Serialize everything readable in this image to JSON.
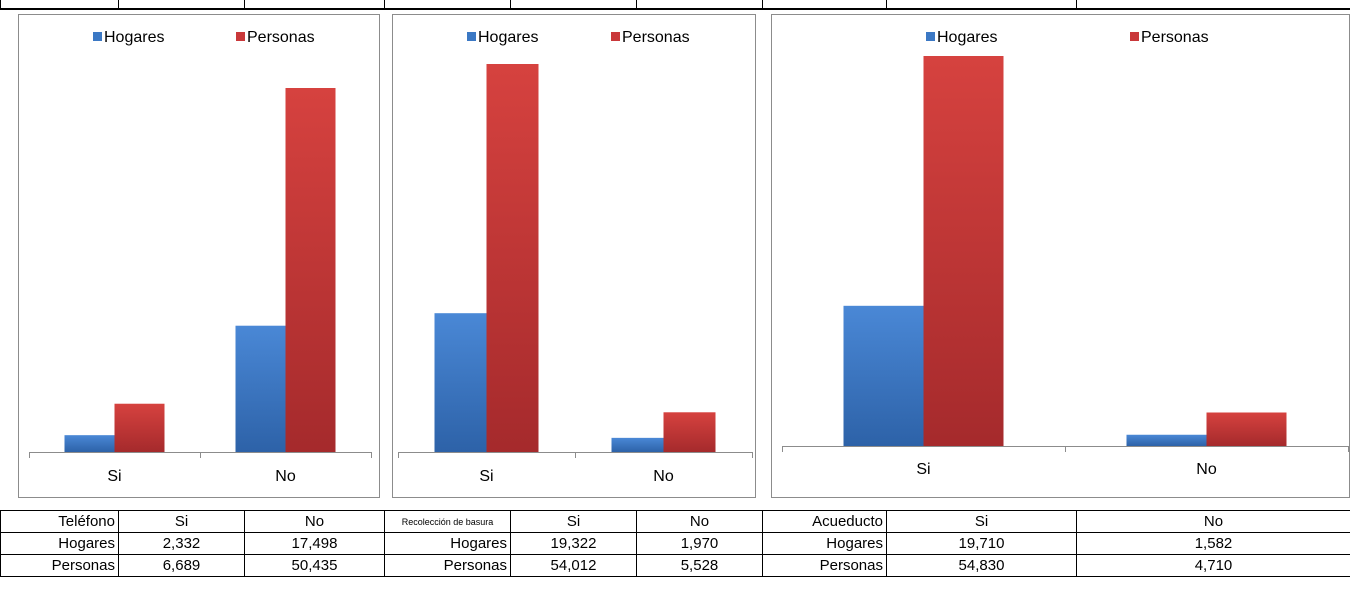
{
  "colors": {
    "hogares": "#3b78c4",
    "personas": "#c9383a"
  },
  "chart_data": [
    {
      "type": "bar",
      "categories": [
        "Si",
        "No"
      ],
      "series": [
        {
          "name": "Hogares",
          "values": [
            2332,
            17498
          ]
        },
        {
          "name": "Personas",
          "values": [
            6689,
            50435
          ]
        }
      ],
      "legend": "top"
    },
    {
      "type": "bar",
      "categories": [
        "Si",
        "No"
      ],
      "series": [
        {
          "name": "Hogares",
          "values": [
            19322,
            1970
          ]
        },
        {
          "name": "Personas",
          "values": [
            54012,
            5528
          ]
        }
      ],
      "legend": "top"
    },
    {
      "type": "bar",
      "categories": [
        "Si",
        "No"
      ],
      "series": [
        {
          "name": "Hogares",
          "values": [
            19710,
            1582
          ]
        },
        {
          "name": "Personas",
          "values": [
            54830,
            4710
          ]
        }
      ],
      "legend": "top"
    }
  ],
  "tables": [
    {
      "header": [
        "Teléfono",
        "Si",
        "No"
      ],
      "rows": [
        [
          "Hogares",
          "2,332",
          "17,498"
        ],
        [
          "Personas",
          "6,689",
          "50,435"
        ]
      ]
    },
    {
      "header": [
        "Recolección de basura",
        "Si",
        "No"
      ],
      "rows": [
        [
          "Hogares",
          "19,322",
          "1,970"
        ],
        [
          "Personas",
          "54,012",
          "5,528"
        ]
      ]
    },
    {
      "header": [
        "Acueducto",
        "Si",
        "No"
      ],
      "rows": [
        [
          "Hogares",
          "19,710",
          "1,582"
        ],
        [
          "Personas",
          "54,830",
          "4,710"
        ]
      ]
    }
  ]
}
